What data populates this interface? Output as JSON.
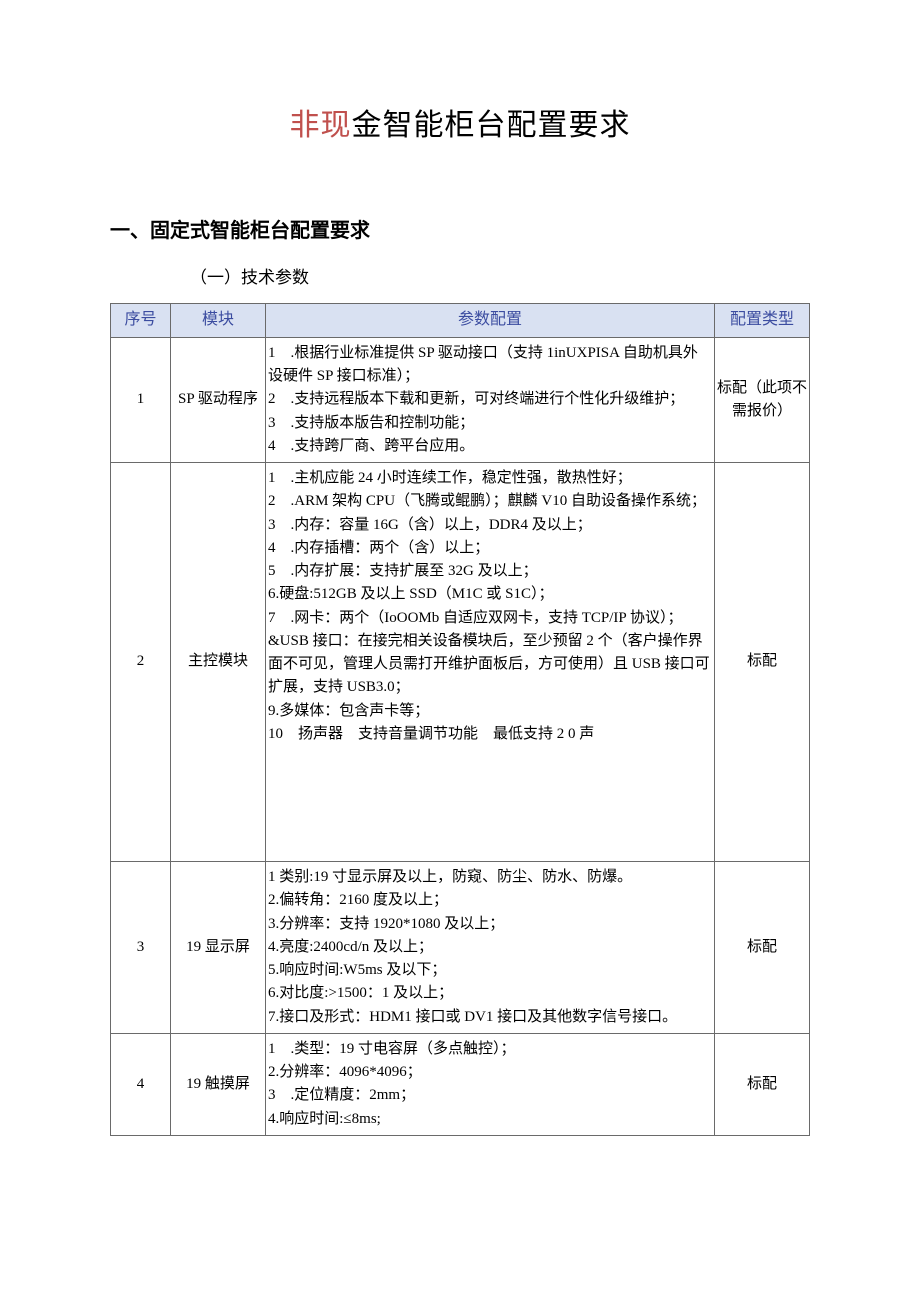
{
  "title_accent": "非现",
  "title_rest": "金智能柜台配置要求",
  "section_heading": "一、固定式智能柜台配置要求",
  "sub_heading": "（一）技术参数",
  "headers": {
    "col1": "序号",
    "col2": "模块",
    "col3": "参数配置",
    "col4": "配置类型"
  },
  "rows": [
    {
      "num": "1",
      "module": "SP 驱动程序",
      "params": "1 .根据行业标准提供 SP 驱动接口（支持 1inUXPISA 自助机具外设硬件 SP 接口标准）；\n2 .支持远程版本下载和更新，可对终端进行个性化升级维护；\n3 .支持版本版告和控制功能；\n4 .支持跨厂商、跨平台应用。",
      "type": "标配（此项不需报价）"
    },
    {
      "num": "2",
      "module": "主控模块",
      "params": "1 .主机应能 24 小时连续工作，稳定性强，散热性好；\n2 .ARM 架构 CPU（飞腾或鲲鹏）；麒麟 V10 自助设备操作系统；\n3 .内存：容量 16G（含）以上，DDR4 及以上；\n4 .内存插槽：两个（含）以上；\n5 .内存扩展：支持扩展至 32G 及以上；\n6.硬盘:512GB 及以上 SSD（M1C 或 S1C）；\n7 .网卡：两个（IoOOMb 自适应双网卡，支持 TCP/IP 协议）；\n&USB 接口：在接完相关设备模块后，至少预留 2 个（客户操作界面不可见，管理人员需打开维护面板后，方可使用）且 USB 接口可扩展，支持 USB3.0；\n9.多媒体：包含声卡等；\n10 扬声器 支持音量调节功能 最低支持 2 0 声",
      "type": "标配"
    },
    {
      "num": "3",
      "module": "19 显示屏",
      "params": "1 类别:19 寸显示屏及以上，防窥、防尘、防水、防爆。\n2.偏转角：2160 度及以上；\n3.分辨率：支持 1920*1080 及以上；\n4.亮度:2400cd/n 及以上；\n5.响应时间:W5ms 及以下；\n6.对比度:>1500：1 及以上；\n7.接口及形式：HDM1 接口或 DV1 接口及其他数字信号接口。",
      "type": "标配"
    },
    {
      "num": "4",
      "module": "19 触摸屏",
      "params": "1 .类型：19 寸电容屏（多点触控）；\n2.分辨率：4096*4096；\n3 .定位精度：2mm；\n4.响应时间:≤8ms;",
      "type": "标配"
    }
  ]
}
